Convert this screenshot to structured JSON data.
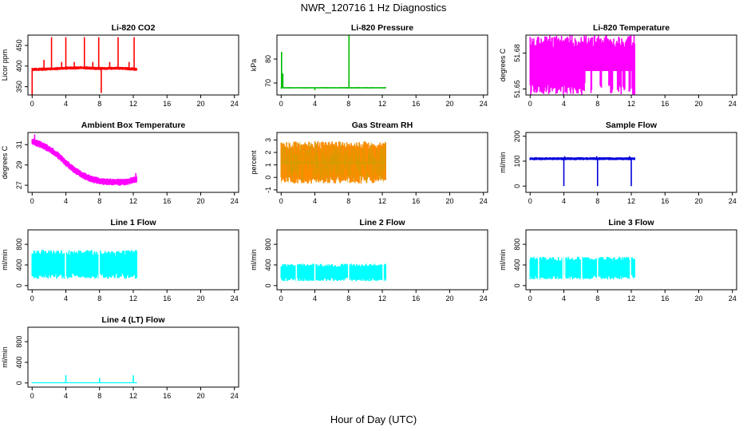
{
  "figure": {
    "title": "NWR_120716  1 Hz Diagnostics",
    "xlabel": "Hour of Day (UTC)"
  },
  "chart_data": [
    {
      "id": "co2",
      "type": "line",
      "title": "Li-820 CO2",
      "ylabel": "Licor ppm",
      "xticks": [
        "0",
        "4",
        "8",
        "12",
        "16",
        "20",
        "24"
      ],
      "xlim": [
        -0.5,
        24.5
      ],
      "yticks": [
        350,
        400,
        450
      ],
      "ylim": [
        330,
        475
      ],
      "color": "#ff0000",
      "band": [
        [
          0,
          392
        ],
        [
          2,
          393
        ],
        [
          4,
          395
        ],
        [
          6,
          396
        ],
        [
          8,
          394
        ],
        [
          10,
          395
        ],
        [
          12,
          393
        ],
        [
          12.4,
          392
        ]
      ],
      "band_half": 4,
      "spikes": [
        [
          0,
          330
        ],
        [
          1.4,
          415
        ],
        [
          2.3,
          470
        ],
        [
          3.5,
          410
        ],
        [
          4,
          470
        ],
        [
          5,
          410
        ],
        [
          6.2,
          470
        ],
        [
          7.2,
          410
        ],
        [
          7.9,
          470
        ],
        [
          8.2,
          335
        ],
        [
          9.2,
          410
        ],
        [
          10.2,
          470
        ],
        [
          11.5,
          410
        ],
        [
          12.1,
          470
        ]
      ],
      "xend": 12.4
    },
    {
      "id": "pressure",
      "type": "line",
      "title": "Li-820 Pressure",
      "ylabel": "kPa",
      "xticks": [
        "0",
        "4",
        "8",
        "12",
        "16",
        "20",
        "24"
      ],
      "xlim": [
        -0.5,
        24.5
      ],
      "yticks": [
        70,
        80
      ],
      "ylim": [
        65,
        90
      ],
      "color": "#00bb00",
      "band": [
        [
          0,
          68
        ],
        [
          12.4,
          68
        ]
      ],
      "band_half": 0.3,
      "spikes": [
        [
          0.05,
          83
        ],
        [
          0.2,
          74
        ],
        [
          4,
          67
        ],
        [
          8.05,
          90
        ]
      ],
      "xend": 12.4
    },
    {
      "id": "temperature",
      "type": "line",
      "title": "Li-820 Temperature",
      "ylabel": "degrees C",
      "xticks": [
        "0",
        "4",
        "8",
        "12",
        "16",
        "20",
        "24"
      ],
      "xlim": [
        -0.5,
        24.5
      ],
      "yticks": [
        51.65,
        51.68
      ],
      "ylim": [
        51.645,
        51.695
      ],
      "color": "#ff00ff",
      "band": [
        [
          0,
          51.67
        ],
        [
          12.4,
          51.67
        ]
      ],
      "band_half": 0.025,
      "gaps": [
        [
          6.5,
          7.2
        ],
        [
          7.3,
          8.3
        ],
        [
          8.5,
          9.3
        ],
        [
          9.8,
          10.3
        ],
        [
          10.8,
          11.0
        ],
        [
          11.3,
          11.7
        ],
        [
          11.9,
          12.1
        ]
      ],
      "gap_floor": 51.665,
      "xend": 12.4
    },
    {
      "id": "ambient",
      "type": "line",
      "title": "Ambient Box Temperature",
      "ylabel": "degrees C",
      "xticks": [
        "0",
        "4",
        "8",
        "12",
        "16",
        "20",
        "24"
      ],
      "xlim": [
        -0.5,
        24.5
      ],
      "yticks": [
        27,
        29,
        31
      ],
      "ylim": [
        26.3,
        32.2
      ],
      "color": "#ff00ff",
      "band": [
        [
          0,
          31.3
        ],
        [
          1,
          31
        ],
        [
          2,
          30.6
        ],
        [
          3,
          30
        ],
        [
          4,
          29.2
        ],
        [
          5,
          28.5
        ],
        [
          6,
          28
        ],
        [
          7,
          27.6
        ],
        [
          8,
          27.4
        ],
        [
          10,
          27.3
        ],
        [
          11,
          27.3
        ],
        [
          12,
          27.5
        ],
        [
          12.4,
          27.6
        ]
      ],
      "band_half": 0.35,
      "spikes": [
        [
          0.3,
          32
        ],
        [
          12.3,
          28.2
        ]
      ],
      "xend": 12.4
    },
    {
      "id": "rh",
      "type": "line",
      "title": "Gas Stream RH",
      "ylabel": "percent",
      "xticks": [
        "0",
        "4",
        "8",
        "12",
        "16",
        "20",
        "24"
      ],
      "xlim": [
        -0.5,
        24.5
      ],
      "yticks": [
        -1,
        0,
        1,
        2,
        3
      ],
      "ylim": [
        -1.2,
        3.6
      ],
      "color": "#ff8c00",
      "noise_color": "#c8a000",
      "band": [
        [
          0,
          1.2
        ],
        [
          12.4,
          1.2
        ]
      ],
      "band_half": 1.7,
      "xend": 12.4
    },
    {
      "id": "sample_flow",
      "type": "line",
      "title": "Sample Flow",
      "ylabel": "ml/min",
      "xticks": [
        "0",
        "4",
        "8",
        "12",
        "16",
        "20",
        "24"
      ],
      "xlim": [
        -0.5,
        24.5
      ],
      "yticks": [
        0,
        100,
        200
      ],
      "ylim": [
        -25,
        215
      ],
      "color": "#0000dd",
      "band": [
        [
          0,
          110
        ],
        [
          12.4,
          110
        ]
      ],
      "band_half": 6,
      "spikes": [
        [
          4,
          0
        ],
        [
          4.1,
          120
        ],
        [
          7.9,
          120
        ],
        [
          8,
          0
        ],
        [
          11.8,
          120
        ],
        [
          12,
          0
        ]
      ],
      "xend": 12.4
    },
    {
      "id": "line1",
      "type": "line",
      "title": "Line 1 Flow",
      "ylabel": "ml/min",
      "xticks": [
        "0",
        "4",
        "8",
        "12",
        "16",
        "20",
        "24"
      ],
      "xlim": [
        -0.5,
        24.5
      ],
      "yticks": [
        0,
        400,
        800
      ],
      "ylim": [
        -80,
        1080
      ],
      "color": "#00ffff",
      "band": [
        [
          0,
          410
        ],
        [
          12.4,
          410
        ]
      ],
      "band_half": 280,
      "gaps_line": [
        3.95,
        7.95
      ],
      "xend": 12.4
    },
    {
      "id": "line2",
      "type": "line",
      "title": "Line 2 Flow",
      "ylabel": "ml/min",
      "xticks": [
        "0",
        "4",
        "8",
        "12",
        "16",
        "20",
        "24"
      ],
      "xlim": [
        -0.5,
        24.5
      ],
      "yticks": [
        0,
        400,
        800
      ],
      "ylim": [
        -80,
        1080
      ],
      "color": "#00ffff",
      "band": [
        [
          0,
          255
        ],
        [
          12.4,
          255
        ]
      ],
      "band_half": 170,
      "gaps_line": [
        1.8,
        4.0,
        8.0,
        12.1
      ],
      "xend": 12.4
    },
    {
      "id": "line3",
      "type": "line",
      "title": "Line 3 Flow",
      "ylabel": "ml/min",
      "xticks": [
        "0",
        "4",
        "8",
        "12",
        "16",
        "20",
        "24"
      ],
      "xlim": [
        -0.5,
        24.5
      ],
      "yticks": [
        0,
        400,
        800
      ],
      "ylim": [
        -80,
        1080
      ],
      "color": "#00ffff",
      "band": [
        [
          0,
          340
        ],
        [
          12.4,
          340
        ]
      ],
      "band_half": 220,
      "gaps_line": [
        1.0,
        3.9,
        4.1,
        6.1,
        8.0,
        11.9
      ],
      "xend": 12.4
    },
    {
      "id": "line4",
      "type": "line",
      "title": "Line 4 (LT) Flow",
      "ylabel": "ml/min",
      "xticks": [
        "0",
        "4",
        "8",
        "12",
        "16",
        "20",
        "24"
      ],
      "xlim": [
        -0.5,
        24.5
      ],
      "yticks": [
        0,
        400,
        800
      ],
      "ylim": [
        -80,
        1080
      ],
      "color": "#00ffff",
      "band": [
        [
          0,
          5
        ],
        [
          12.4,
          5
        ]
      ],
      "band_half": 8,
      "spikes": [
        [
          4,
          150
        ],
        [
          8,
          100
        ],
        [
          12,
          150
        ]
      ],
      "xend": 12.4
    }
  ]
}
